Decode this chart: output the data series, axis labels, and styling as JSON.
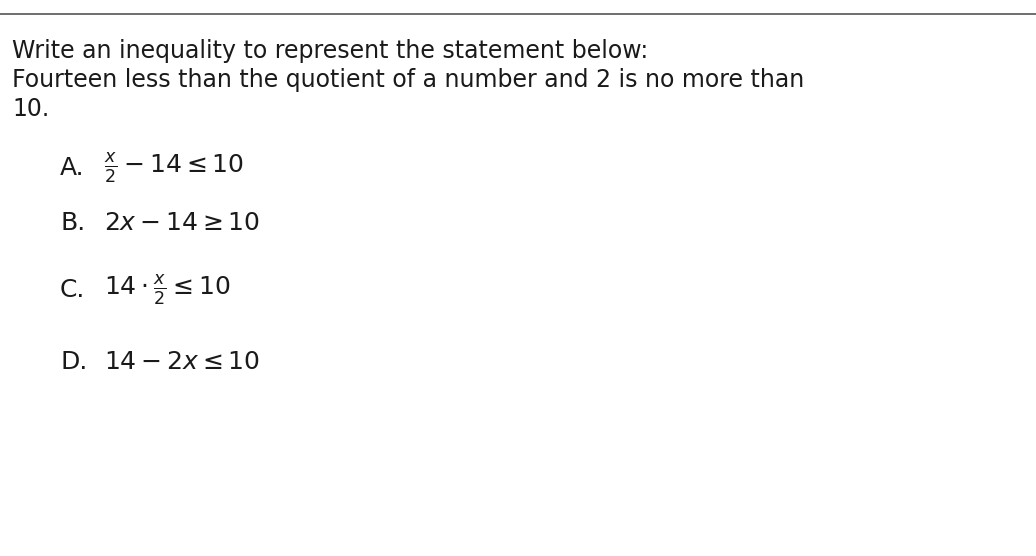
{
  "background_color": "#ffffff",
  "text_color": "#1a1a1a",
  "font_size_question": 17,
  "font_size_options": 18,
  "font_size_math": 18,
  "question_line1": "Write an inequality to represent the statement below:",
  "question_line2": "Fourteen less than the quotient of a number and 2 is no more than",
  "question_line3": "10.",
  "option_A_label": "A.",
  "option_A_expr": "$\\frac{x}{2} - 14 \\leq 10$",
  "option_B_label": "B.",
  "option_B_expr": "$2x - 14 \\geq 10$",
  "option_C_label": "C.",
  "option_C_expr": "$14 \\cdot \\frac{x}{2} \\leq 10$",
  "option_D_label": "D.",
  "option_D_expr": "$14 - 2x \\leq 10$"
}
